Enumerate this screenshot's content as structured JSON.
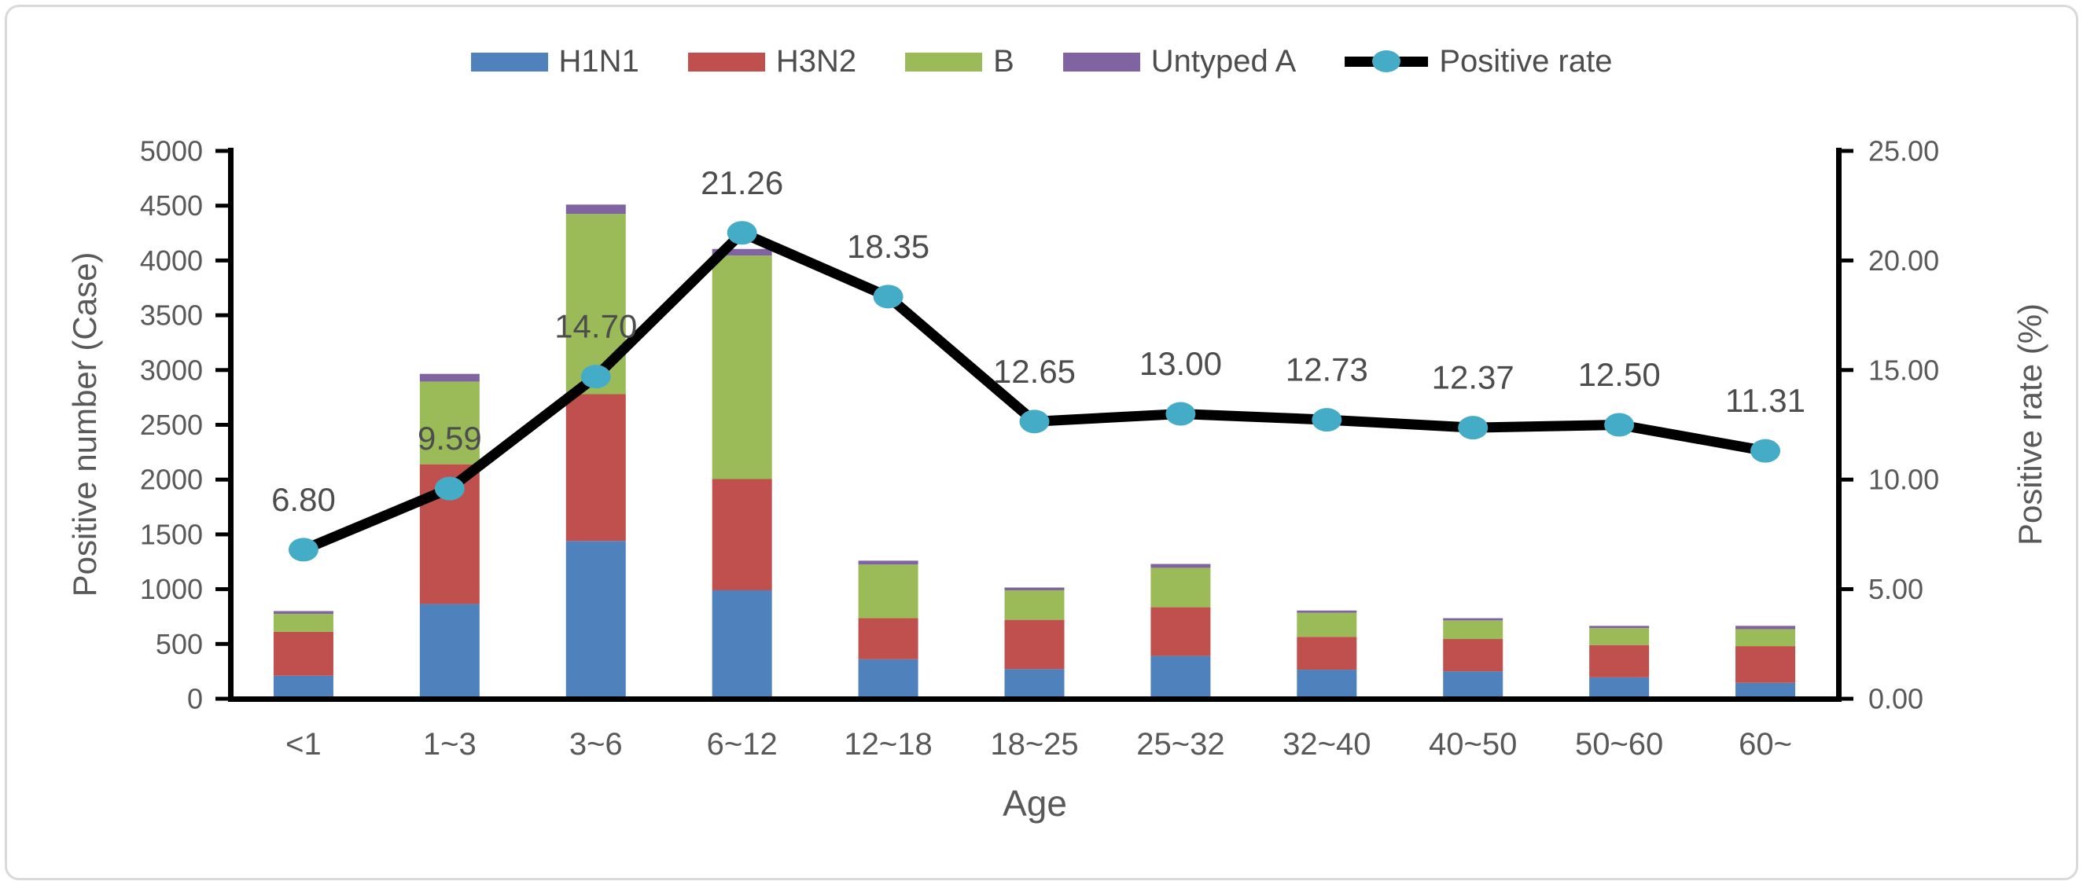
{
  "chart_data": {
    "type": "bar",
    "subtype": "stacked-bar-with-line-overlay",
    "title": "",
    "xlabel": "Age",
    "ylabel_left": "Positive number (Case)",
    "ylabel_right": "Positive rate (%)",
    "categories": [
      "<1",
      "1~3",
      "3~6",
      "6~12",
      "12~18",
      "18~25",
      "25~32",
      "32~40",
      "40~50",
      "50~60",
      "60~"
    ],
    "bar_series": [
      {
        "name": "H1N1",
        "color_key": "h1n1",
        "values": [
          210,
          865,
          1440,
          990,
          360,
          270,
          390,
          265,
          250,
          195,
          145
        ]
      },
      {
        "name": "H3N2",
        "color_key": "h3n2",
        "values": [
          400,
          1275,
          1340,
          1015,
          375,
          450,
          445,
          300,
          295,
          295,
          335
        ]
      },
      {
        "name": "B",
        "color_key": "b",
        "values": [
          165,
          755,
          1645,
          2040,
          490,
          270,
          360,
          220,
          170,
          155,
          155
        ]
      },
      {
        "name": "Untyped A",
        "color_key": "untyped",
        "values": [
          25,
          70,
          85,
          60,
          35,
          25,
          35,
          20,
          20,
          20,
          30
        ]
      }
    ],
    "line_series": {
      "name": "Positive rate",
      "color_key": "rate_line",
      "marker_color_key": "rate_marker",
      "values": [
        6.8,
        9.59,
        14.7,
        21.26,
        18.35,
        12.65,
        13.0,
        12.73,
        12.37,
        12.5,
        11.31
      ],
      "labels": [
        "6.80",
        "9.59",
        "14.70",
        "21.26",
        "18.35",
        "12.65",
        "13.00",
        "12.73",
        "12.37",
        "12.50",
        "11.31"
      ]
    },
    "ylim_left": [
      0,
      5000
    ],
    "ylim_right": [
      0,
      25
    ],
    "left_ticks": [
      "5000",
      "4500",
      "4000",
      "3500",
      "3000",
      "2500",
      "2000",
      "1500",
      "1000",
      "500",
      "0"
    ],
    "right_ticks": [
      "25.00",
      "20.00",
      "15.00",
      "10.00",
      "5.00",
      "0.00"
    ],
    "legend_position": "top-center",
    "grid": false,
    "legend": [
      {
        "label": "H1N1",
        "swatch": "bar",
        "color_key": "h1n1"
      },
      {
        "label": "H3N2",
        "swatch": "bar",
        "color_key": "h3n2"
      },
      {
        "label": "B",
        "swatch": "bar",
        "color_key": "b"
      },
      {
        "label": "Untyped A",
        "swatch": "bar",
        "color_key": "untyped"
      },
      {
        "label": "Positive rate",
        "swatch": "line",
        "color_key": "rate_line"
      }
    ]
  },
  "colors": {
    "h1n1": "#4F81BD",
    "h3n2": "#C0504D",
    "b": "#9BBB59",
    "untyped": "#8064A2",
    "rate_line": "#000000",
    "rate_marker": "#45ACC8",
    "axis": "#000000",
    "text": "#595959",
    "frame": "#D9D9D9"
  }
}
